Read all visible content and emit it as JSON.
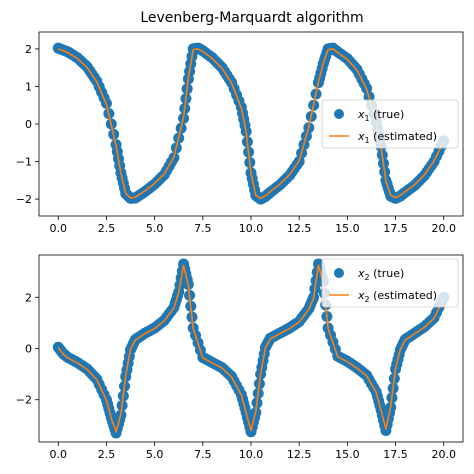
{
  "chart_data": [
    {
      "type": "scatter",
      "title": "Levenberg-Marquardt algorithm",
      "xlabel": "",
      "ylabel": "",
      "xlim": [
        -1.0,
        21.0
      ],
      "ylim": [
        -2.45,
        2.45
      ],
      "xticks": [
        0.0,
        2.5,
        5.0,
        7.5,
        10.0,
        12.5,
        15.0,
        17.5,
        20.0
      ],
      "xtick_labels": [
        "0.0",
        "2.5",
        "5.0",
        "7.5",
        "10.0",
        "12.5",
        "15.0",
        "17.5",
        "20.0"
      ],
      "yticks": [
        -2,
        -1,
        0,
        1,
        2
      ],
      "ytick_labels": [
        "−2",
        "−1",
        "0",
        "1",
        "2"
      ],
      "grid": false,
      "legend_position": "center-right",
      "series": [
        {
          "name": "x1 (true)",
          "legend_main": "x",
          "legend_sub": "1",
          "legend_suffix": " (true)",
          "kind": "scatter",
          "color": "#1f77b4",
          "x": [
            0.0,
            0.5,
            1.0,
            1.5,
            2.0,
            2.5,
            3.0,
            3.25,
            3.5,
            3.75,
            4.0,
            4.5,
            5.0,
            5.5,
            6.0,
            6.5,
            6.75,
            7.0,
            7.25,
            7.5,
            8.0,
            8.5,
            9.0,
            9.5,
            9.75,
            10.0,
            10.25,
            10.5,
            10.75,
            11.0,
            11.5,
            12.0,
            12.5,
            13.0,
            13.5,
            13.75,
            14.0,
            14.25,
            14.5,
            15.0,
            15.5,
            16.0,
            16.5,
            16.75,
            17.0,
            17.25,
            17.5,
            17.75,
            18.0,
            18.5,
            19.0,
            19.5,
            20.0
          ],
          "y": [
            2.02,
            1.92,
            1.76,
            1.52,
            1.14,
            0.55,
            -0.55,
            -1.3,
            -1.85,
            -1.98,
            -1.97,
            -1.8,
            -1.6,
            -1.35,
            -0.9,
            0.15,
            1.2,
            2.0,
            2.02,
            1.95,
            1.76,
            1.5,
            1.1,
            0.45,
            -0.2,
            -1.3,
            -1.9,
            -2.0,
            -1.93,
            -1.82,
            -1.62,
            -1.37,
            -1.0,
            -0.1,
            1.1,
            1.6,
            2.0,
            2.02,
            1.92,
            1.74,
            1.45,
            0.95,
            0.05,
            -0.6,
            -1.5,
            -1.92,
            -1.98,
            -1.92,
            -1.82,
            -1.63,
            -1.37,
            -1.0,
            -0.45
          ]
        },
        {
          "name": "x1 (estimated)",
          "legend_main": "x",
          "legend_sub": "1",
          "legend_suffix": " (estimated)",
          "kind": "line",
          "color": "#ff7f0e",
          "x": [
            0.0,
            0.5,
            1.0,
            1.5,
            2.0,
            2.5,
            3.0,
            3.25,
            3.5,
            3.75,
            4.0,
            4.5,
            5.0,
            5.5,
            6.0,
            6.5,
            6.75,
            7.0,
            7.25,
            7.5,
            8.0,
            8.5,
            9.0,
            9.5,
            9.75,
            10.0,
            10.25,
            10.5,
            10.75,
            11.0,
            11.5,
            12.0,
            12.5,
            13.0,
            13.5,
            13.75,
            14.0,
            14.25,
            14.5,
            15.0,
            15.5,
            16.0,
            16.5,
            16.75,
            17.0,
            17.25,
            17.5,
            17.75,
            18.0,
            18.5,
            19.0,
            19.5,
            20.0
          ],
          "y": [
            2.0,
            1.9,
            1.74,
            1.5,
            1.12,
            0.52,
            -0.58,
            -1.32,
            -1.85,
            -1.97,
            -1.95,
            -1.78,
            -1.58,
            -1.33,
            -0.88,
            0.18,
            1.22,
            1.98,
            2.0,
            1.93,
            1.74,
            1.48,
            1.08,
            0.42,
            -0.22,
            -1.32,
            -1.9,
            -1.98,
            -1.91,
            -1.8,
            -1.6,
            -1.35,
            -0.98,
            -0.08,
            1.12,
            1.62,
            1.98,
            2.0,
            1.9,
            1.72,
            1.43,
            0.93,
            0.03,
            -0.62,
            -1.52,
            -1.9,
            -1.96,
            -1.9,
            -1.8,
            -1.61,
            -1.35,
            -0.98,
            -0.47
          ]
        }
      ]
    },
    {
      "type": "scatter",
      "title": "",
      "xlabel": "",
      "ylabel": "",
      "xlim": [
        -1.0,
        21.0
      ],
      "ylim": [
        -3.65,
        3.65
      ],
      "xticks": [
        0.0,
        2.5,
        5.0,
        7.5,
        10.0,
        12.5,
        15.0,
        17.5,
        20.0
      ],
      "xtick_labels": [
        "0.0",
        "2.5",
        "5.0",
        "7.5",
        "10.0",
        "12.5",
        "15.0",
        "17.5",
        "20.0"
      ],
      "yticks": [
        -2,
        0,
        2
      ],
      "ytick_labels": [
        "−2",
        "0",
        "2"
      ],
      "grid": false,
      "legend_position": "top-right",
      "series": [
        {
          "name": "x2 (true)",
          "legend_main": "x",
          "legend_sub": "2",
          "legend_suffix": " (true)",
          "kind": "scatter",
          "color": "#1f77b4",
          "x": [
            0.0,
            0.25,
            0.5,
            1.0,
            1.5,
            2.0,
            2.5,
            2.75,
            3.0,
            3.25,
            3.5,
            3.75,
            4.0,
            4.5,
            5.0,
            5.5,
            6.0,
            6.25,
            6.5,
            6.75,
            7.0,
            7.5,
            8.0,
            8.5,
            9.0,
            9.5,
            9.75,
            10.0,
            10.25,
            10.5,
            10.75,
            11.0,
            11.5,
            12.0,
            12.5,
            13.0,
            13.25,
            13.5,
            13.75,
            14.0,
            14.5,
            15.0,
            15.5,
            16.0,
            16.5,
            16.75,
            17.0,
            17.25,
            17.5,
            17.75,
            18.0,
            18.5,
            19.0,
            19.5,
            20.0
          ],
          "y": [
            0.05,
            -0.2,
            -0.35,
            -0.55,
            -0.8,
            -1.2,
            -2.0,
            -2.7,
            -3.3,
            -2.6,
            -1.1,
            -0.05,
            0.35,
            0.6,
            0.8,
            1.1,
            1.6,
            2.2,
            3.3,
            2.5,
            0.8,
            -0.35,
            -0.55,
            -0.75,
            -1.1,
            -1.8,
            -2.5,
            -3.25,
            -2.5,
            -1.0,
            0.05,
            0.4,
            0.6,
            0.8,
            1.05,
            1.55,
            2.0,
            3.3,
            2.6,
            0.8,
            -0.3,
            -0.5,
            -0.75,
            -1.05,
            -1.7,
            -2.4,
            -3.2,
            -2.3,
            -0.8,
            -0.05,
            0.35,
            0.6,
            0.85,
            1.2,
            2.0
          ]
        },
        {
          "name": "x2 (estimated)",
          "legend_main": "x",
          "legend_sub": "2",
          "legend_suffix": " (estimated)",
          "kind": "line",
          "color": "#ff7f0e",
          "x": [
            0.0,
            0.25,
            0.5,
            1.0,
            1.5,
            2.0,
            2.5,
            2.75,
            3.0,
            3.25,
            3.5,
            3.75,
            4.0,
            4.5,
            5.0,
            5.5,
            6.0,
            6.25,
            6.5,
            6.75,
            7.0,
            7.5,
            8.0,
            8.5,
            9.0,
            9.5,
            9.75,
            10.0,
            10.25,
            10.5,
            10.75,
            11.0,
            11.5,
            12.0,
            12.5,
            13.0,
            13.25,
            13.5,
            13.75,
            14.0,
            14.5,
            15.0,
            15.5,
            16.0,
            16.5,
            16.75,
            17.0,
            17.25,
            17.5,
            17.75,
            18.0,
            18.5,
            19.0,
            19.5,
            20.0
          ],
          "y": [
            0.03,
            -0.22,
            -0.37,
            -0.57,
            -0.82,
            -1.22,
            -2.02,
            -2.72,
            -3.25,
            -2.55,
            -1.05,
            -0.02,
            0.33,
            0.58,
            0.78,
            1.08,
            1.58,
            2.18,
            3.25,
            2.45,
            0.78,
            -0.37,
            -0.57,
            -0.77,
            -1.12,
            -1.82,
            -2.52,
            -3.2,
            -2.45,
            -0.98,
            0.03,
            0.38,
            0.58,
            0.78,
            1.03,
            1.53,
            1.98,
            3.25,
            2.55,
            0.78,
            -0.32,
            -0.52,
            -0.77,
            -1.07,
            -1.72,
            -2.42,
            -3.15,
            -2.25,
            -0.78,
            -0.03,
            0.33,
            0.58,
            0.83,
            1.18,
            1.98
          ]
        }
      ]
    }
  ]
}
